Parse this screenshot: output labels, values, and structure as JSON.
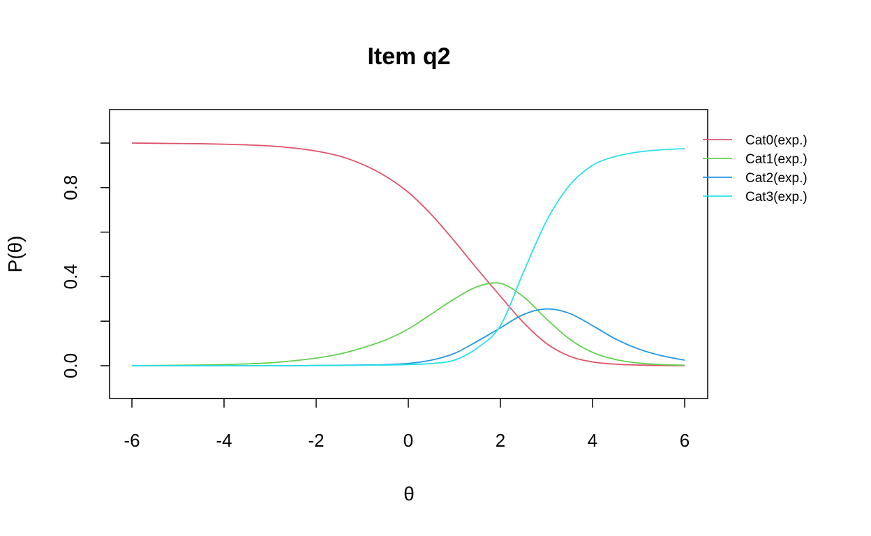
{
  "chart_data": {
    "type": "line",
    "title": "Item q2",
    "xlabel": "θ",
    "ylabel": "P(θ)",
    "xlim": [
      -6,
      6
    ],
    "ylim": [
      -0.15,
      1.15
    ],
    "x_ticks": [
      -6,
      -4,
      -2,
      0,
      2,
      4,
      6
    ],
    "x_tick_labels": [
      "-6",
      "-4",
      "-2",
      "0",
      "2",
      "4",
      "6"
    ],
    "y_ticks": [
      0,
      0.2,
      0.4,
      0.6,
      0.8,
      1.0
    ],
    "y_tick_labels": [
      "0.0",
      "",
      "0.4",
      "",
      "0.8",
      ""
    ],
    "grid": false,
    "legend_position": "right",
    "x": [
      -6,
      -5.5,
      -5,
      -4.5,
      -4,
      -3.5,
      -3,
      -2.5,
      -2,
      -1.5,
      -1,
      -0.5,
      0,
      0.5,
      1,
      1.5,
      2,
      2.5,
      3,
      3.5,
      4,
      4.5,
      5,
      5.5,
      6
    ],
    "series": [
      {
        "name": "Cat0(exp.)",
        "color": "#DF536B",
        "values": [
          1.0,
          0.999,
          0.998,
          0.997,
          0.995,
          0.992,
          0.987,
          0.978,
          0.964,
          0.942,
          0.905,
          0.852,
          0.779,
          0.679,
          0.56,
          0.434,
          0.312,
          0.194,
          0.1,
          0.043,
          0.017,
          0.007,
          0.003,
          0.001,
          0.0
        ]
      },
      {
        "name": "Cat1(exp.)",
        "color": "#61D04F",
        "values": [
          0.0,
          0.001,
          0.002,
          0.003,
          0.005,
          0.008,
          0.013,
          0.022,
          0.034,
          0.052,
          0.08,
          0.115,
          0.165,
          0.232,
          0.3,
          0.355,
          0.37,
          0.31,
          0.21,
          0.12,
          0.06,
          0.028,
          0.012,
          0.005,
          0.002
        ]
      },
      {
        "name": "Cat2(exp.)",
        "color": "#2297E6",
        "values": [
          0.0,
          0.0,
          0.0,
          0.0,
          0.0,
          0.0,
          0.0,
          0.0,
          0.001,
          0.002,
          0.003,
          0.005,
          0.01,
          0.025,
          0.055,
          0.11,
          0.17,
          0.23,
          0.255,
          0.235,
          0.18,
          0.12,
          0.075,
          0.045,
          0.025
        ]
      },
      {
        "name": "Cat3(exp.)",
        "color": "#28E2E5",
        "values": [
          0.0,
          0.0,
          0.0,
          0.0,
          0.0,
          0.0,
          0.0,
          0.0,
          0.001,
          0.001,
          0.002,
          0.003,
          0.005,
          0.01,
          0.025,
          0.08,
          0.18,
          0.42,
          0.65,
          0.81,
          0.9,
          0.94,
          0.96,
          0.97,
          0.975
        ]
      }
    ]
  }
}
